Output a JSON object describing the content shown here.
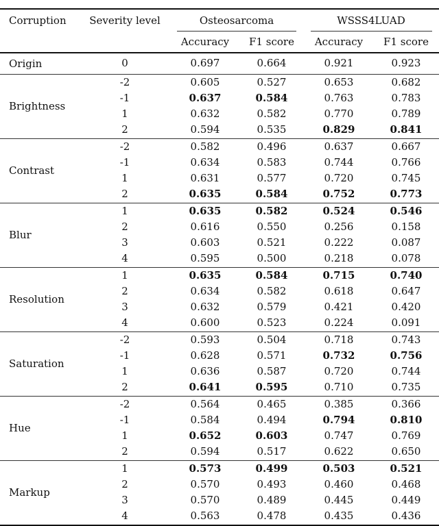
{
  "table": {
    "headers": {
      "corruption": "Corruption",
      "severity": "Severity level",
      "datasets": [
        "Osteosarcoma",
        "WSSS4LUAD"
      ],
      "metrics": [
        "Accuracy",
        "F1 score",
        "Accuracy",
        "F1 score"
      ]
    },
    "groups": [
      {
        "name": "Origin",
        "rows": [
          {
            "level": "0",
            "values": [
              "0.697",
              "0.664",
              "0.921",
              "0.923"
            ],
            "bold": [
              false,
              false,
              false,
              false
            ]
          }
        ]
      },
      {
        "name": "Brightness",
        "rows": [
          {
            "level": "-2",
            "values": [
              "0.605",
              "0.527",
              "0.653",
              "0.682"
            ],
            "bold": [
              false,
              false,
              false,
              false
            ]
          },
          {
            "level": "-1",
            "values": [
              "0.637",
              "0.584",
              "0.763",
              "0.783"
            ],
            "bold": [
              true,
              true,
              false,
              false
            ]
          },
          {
            "level": "1",
            "values": [
              "0.632",
              "0.582",
              "0.770",
              "0.789"
            ],
            "bold": [
              false,
              false,
              false,
              false
            ]
          },
          {
            "level": "2",
            "values": [
              "0.594",
              "0.535",
              "0.829",
              "0.841"
            ],
            "bold": [
              false,
              false,
              true,
              true
            ]
          }
        ]
      },
      {
        "name": "Contrast",
        "rows": [
          {
            "level": "-2",
            "values": [
              "0.582",
              "0.496",
              "0.637",
              "0.667"
            ],
            "bold": [
              false,
              false,
              false,
              false
            ]
          },
          {
            "level": "-1",
            "values": [
              "0.634",
              "0.583",
              "0.744",
              "0.766"
            ],
            "bold": [
              false,
              false,
              false,
              false
            ]
          },
          {
            "level": "1",
            "values": [
              "0.631",
              "0.577",
              "0.720",
              "0.745"
            ],
            "bold": [
              false,
              false,
              false,
              false
            ]
          },
          {
            "level": "2",
            "values": [
              "0.635",
              "0.584",
              "0.752",
              "0.773"
            ],
            "bold": [
              true,
              true,
              true,
              true
            ]
          }
        ]
      },
      {
        "name": "Blur",
        "rows": [
          {
            "level": "1",
            "values": [
              "0.635",
              "0.582",
              "0.524",
              "0.546"
            ],
            "bold": [
              true,
              true,
              true,
              true
            ]
          },
          {
            "level": "2",
            "values": [
              "0.616",
              "0.550",
              "0.256",
              "0.158"
            ],
            "bold": [
              false,
              false,
              false,
              false
            ]
          },
          {
            "level": "3",
            "values": [
              "0.603",
              "0.521",
              "0.222",
              "0.087"
            ],
            "bold": [
              false,
              false,
              false,
              false
            ]
          },
          {
            "level": "4",
            "values": [
              "0.595",
              "0.500",
              "0.218",
              "0.078"
            ],
            "bold": [
              false,
              false,
              false,
              false
            ]
          }
        ]
      },
      {
        "name": "Resolution",
        "rows": [
          {
            "level": "1",
            "values": [
              "0.635",
              "0.584",
              "0.715",
              "0.740"
            ],
            "bold": [
              true,
              true,
              true,
              true
            ]
          },
          {
            "level": "2",
            "values": [
              "0.634",
              "0.582",
              "0.618",
              "0.647"
            ],
            "bold": [
              false,
              false,
              false,
              false
            ]
          },
          {
            "level": "3",
            "values": [
              "0.632",
              "0.579",
              "0.421",
              "0.420"
            ],
            "bold": [
              false,
              false,
              false,
              false
            ]
          },
          {
            "level": "4",
            "values": [
              "0.600",
              "0.523",
              "0.224",
              "0.091"
            ],
            "bold": [
              false,
              false,
              false,
              false
            ]
          }
        ]
      },
      {
        "name": "Saturation",
        "rows": [
          {
            "level": "-2",
            "values": [
              "0.593",
              "0.504",
              "0.718",
              "0.743"
            ],
            "bold": [
              false,
              false,
              false,
              false
            ]
          },
          {
            "level": "-1",
            "values": [
              "0.628",
              "0.571",
              "0.732",
              "0.756"
            ],
            "bold": [
              false,
              false,
              true,
              true
            ]
          },
          {
            "level": "1",
            "values": [
              "0.636",
              "0.587",
              "0.720",
              "0.744"
            ],
            "bold": [
              false,
              false,
              false,
              false
            ]
          },
          {
            "level": "2",
            "values": [
              "0.641",
              "0.595",
              "0.710",
              "0.735"
            ],
            "bold": [
              true,
              true,
              false,
              false
            ]
          }
        ]
      },
      {
        "name": "Hue",
        "rows": [
          {
            "level": "-2",
            "values": [
              "0.564",
              "0.465",
              "0.385",
              "0.366"
            ],
            "bold": [
              false,
              false,
              false,
              false
            ]
          },
          {
            "level": "-1",
            "values": [
              "0.584",
              "0.494",
              "0.794",
              "0.810"
            ],
            "bold": [
              false,
              false,
              true,
              true
            ]
          },
          {
            "level": "1",
            "values": [
              "0.652",
              "0.603",
              "0.747",
              "0.769"
            ],
            "bold": [
              true,
              true,
              false,
              false
            ]
          },
          {
            "level": "2",
            "values": [
              "0.594",
              "0.517",
              "0.622",
              "0.650"
            ],
            "bold": [
              false,
              false,
              false,
              false
            ]
          }
        ]
      },
      {
        "name": "Markup",
        "rows": [
          {
            "level": "1",
            "values": [
              "0.573",
              "0.499",
              "0.503",
              "0.521"
            ],
            "bold": [
              true,
              true,
              true,
              true
            ]
          },
          {
            "level": "2",
            "values": [
              "0.570",
              "0.493",
              "0.460",
              "0.468"
            ],
            "bold": [
              false,
              false,
              false,
              false
            ]
          },
          {
            "level": "3",
            "values": [
              "0.570",
              "0.489",
              "0.445",
              "0.449"
            ],
            "bold": [
              false,
              false,
              false,
              false
            ]
          },
          {
            "level": "4",
            "values": [
              "0.563",
              "0.478",
              "0.435",
              "0.436"
            ],
            "bold": [
              false,
              false,
              false,
              false
            ]
          }
        ]
      }
    ]
  }
}
